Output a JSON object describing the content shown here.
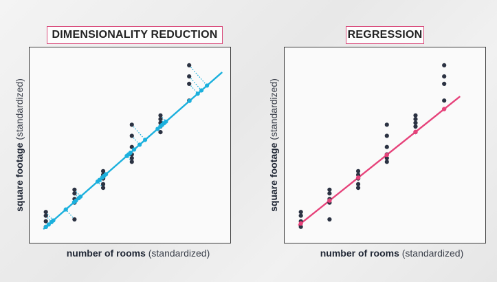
{
  "left_panel": {
    "title": "DIMENSIONALITY REDUCTION",
    "ylabel_bold": "square footage",
    "ylabel_normal": "(standardized)",
    "xlabel_bold": "number of rooms",
    "xlabel_normal": "(standardized)"
  },
  "right_panel": {
    "title": "REGRESSION",
    "ylabel_bold": "square footage",
    "ylabel_normal": "(standardized)",
    "xlabel_bold": "number of rooms",
    "xlabel_normal": "(standardized)"
  },
  "colors": {
    "point": "#2b3242",
    "projection_line": "#1bb0dd",
    "regression_line": "#e6427a",
    "frame": "#3a3a3a",
    "title_border": "#d94b7b"
  },
  "chart_data": [
    {
      "type": "scatter",
      "title": "DIMENSIONALITY REDUCTION",
      "xlabel": "number of rooms (standardized)",
      "ylabel": "square footage (standardized)",
      "xlim": [
        0,
        10
      ],
      "ylim": [
        0,
        10
      ],
      "fit_line": {
        "x": [
          0.5,
          9.8
        ],
        "y": [
          0.5,
          8.9
        ]
      },
      "projection": "orthogonal",
      "points": {
        "x": [
          0.6,
          0.6,
          0.6,
          0.6,
          2.1,
          2.1,
          2.1,
          2.1,
          2.1,
          3.6,
          3.6,
          3.6,
          3.6,
          3.6,
          5.1,
          5.1,
          5.1,
          5.1,
          5.1,
          5.1,
          6.6,
          6.6,
          6.6,
          6.6,
          6.6,
          8.1,
          8.1,
          8.1,
          8.1
        ],
        "y": [
          0.6,
          0.9,
          1.2,
          1.4,
          1.0,
          1.9,
          2.1,
          2.4,
          2.6,
          2.7,
          2.9,
          3.2,
          3.4,
          3.6,
          4.1,
          4.3,
          4.5,
          4.9,
          5.5,
          6.1,
          5.7,
          6.0,
          6.2,
          6.4,
          6.6,
          7.4,
          8.3,
          8.7,
          9.3
        ]
      }
    },
    {
      "type": "scatter",
      "title": "REGRESSION",
      "xlabel": "number of rooms (standardized)",
      "ylabel": "square footage (standardized)",
      "xlim": [
        0,
        10
      ],
      "ylim": [
        0,
        10
      ],
      "fit_line": {
        "x": [
          0.5,
          8.9
        ],
        "y": [
          0.7,
          7.6
        ]
      },
      "projection": "vertical",
      "points": {
        "x": [
          0.6,
          0.6,
          0.6,
          0.6,
          2.1,
          2.1,
          2.1,
          2.1,
          2.1,
          3.6,
          3.6,
          3.6,
          3.6,
          3.6,
          5.1,
          5.1,
          5.1,
          5.1,
          5.1,
          5.1,
          6.6,
          6.6,
          6.6,
          6.6,
          6.6,
          8.1,
          8.1,
          8.1,
          8.1
        ],
        "y": [
          0.6,
          0.9,
          1.2,
          1.4,
          1.0,
          1.9,
          2.1,
          2.4,
          2.6,
          2.7,
          2.9,
          3.2,
          3.4,
          3.6,
          4.1,
          4.3,
          4.5,
          4.9,
          5.5,
          6.1,
          5.7,
          6.0,
          6.2,
          6.4,
          6.6,
          7.4,
          8.3,
          8.7,
          9.3
        ]
      }
    }
  ]
}
